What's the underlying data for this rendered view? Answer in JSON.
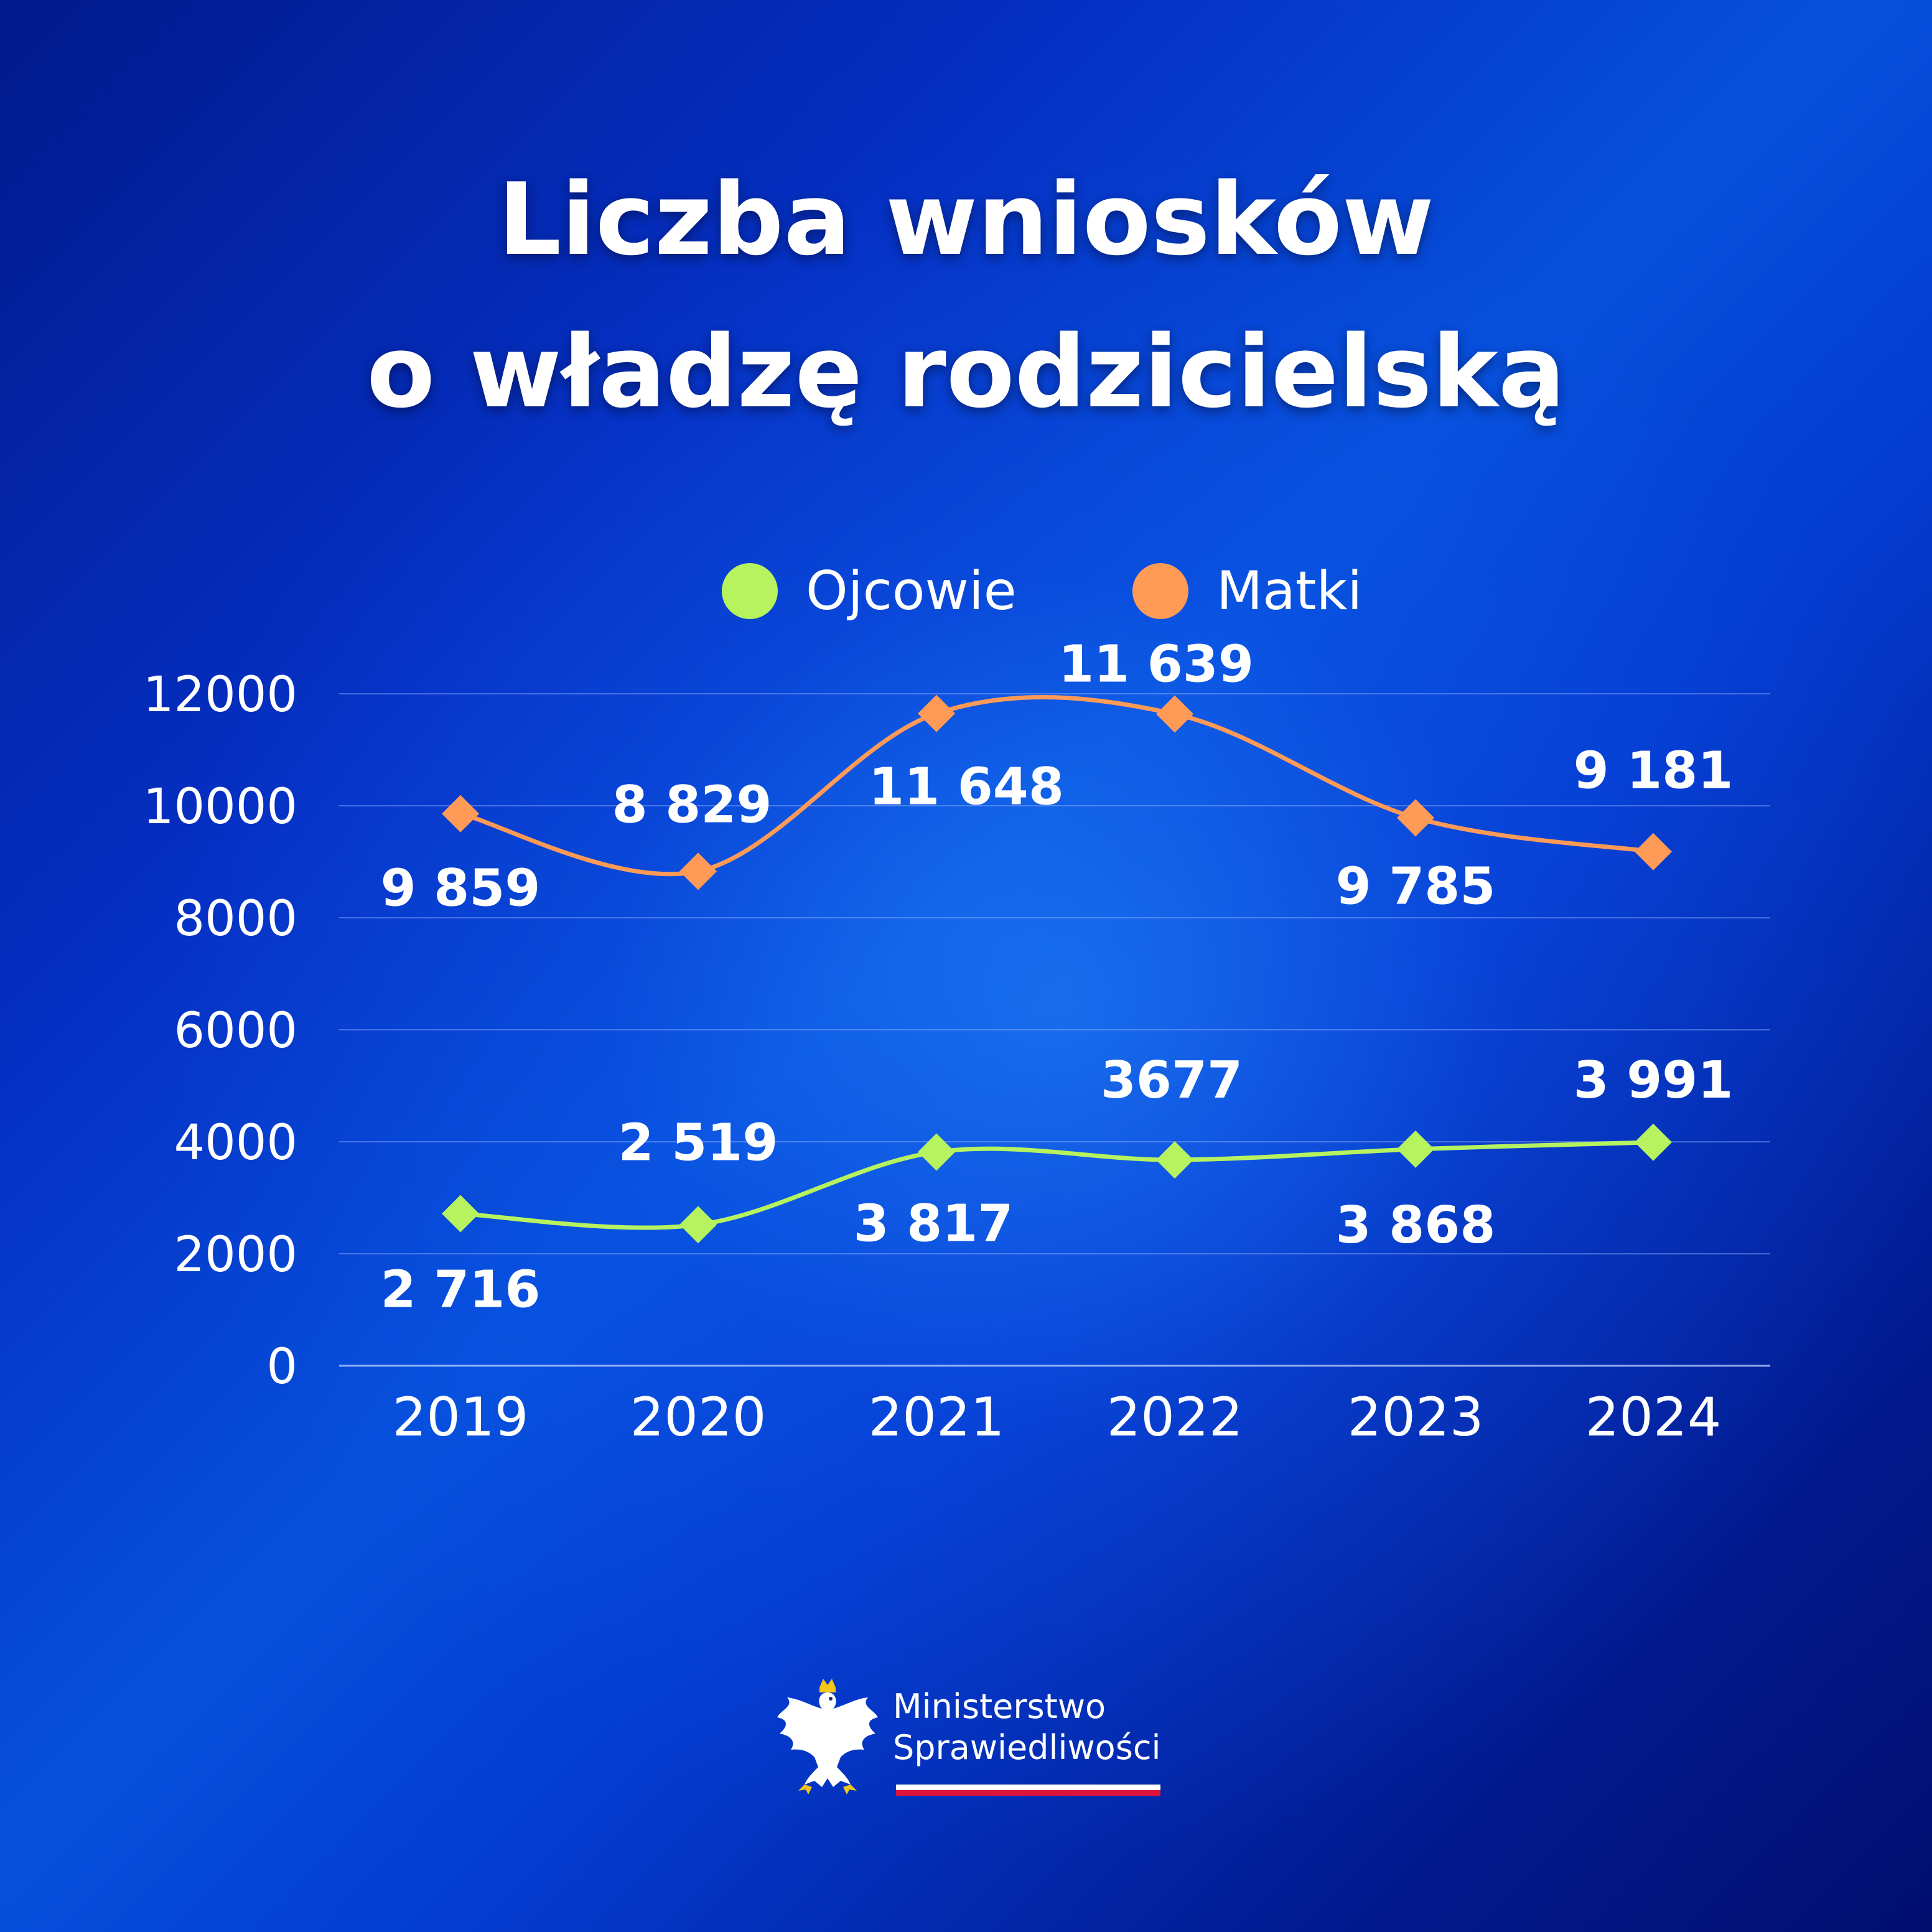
{
  "title_lines": [
    "Liczba wniosków",
    "o władzę rodzicielską"
  ],
  "legend": [
    {
      "label": "Ojcowie",
      "color": "#b6f35f"
    },
    {
      "label": "Matki",
      "color": "#ff9a57"
    }
  ],
  "chart_data": {
    "type": "line",
    "title": "Liczba wniosków o władzę rodzicielską",
    "categories": [
      "2019",
      "2020",
      "2021",
      "2022",
      "2023",
      "2024"
    ],
    "ylim": [
      0,
      12000
    ],
    "yticks": [
      0,
      2000,
      4000,
      6000,
      8000,
      10000,
      12000
    ],
    "grid": true,
    "legend_position": "top-center",
    "series": [
      {
        "name": "Ojcowie",
        "color": "#b6f35f",
        "values": [
          2716,
          2519,
          3817,
          3677,
          3868,
          3991
        ],
        "labels": [
          "2 716",
          "2 519",
          "3 817",
          "3677",
          "3 868",
          "3 991"
        ]
      },
      {
        "name": "Matki",
        "color": "#ff9a57",
        "values": [
          9859,
          8829,
          11648,
          11639,
          9785,
          9181
        ],
        "labels": [
          "9 859",
          "8 829",
          "11 648",
          "11 639",
          "9 785",
          "9 181"
        ]
      }
    ]
  },
  "logo": {
    "line1": "Ministerstwo",
    "line2": "Sprawiedliwości"
  }
}
